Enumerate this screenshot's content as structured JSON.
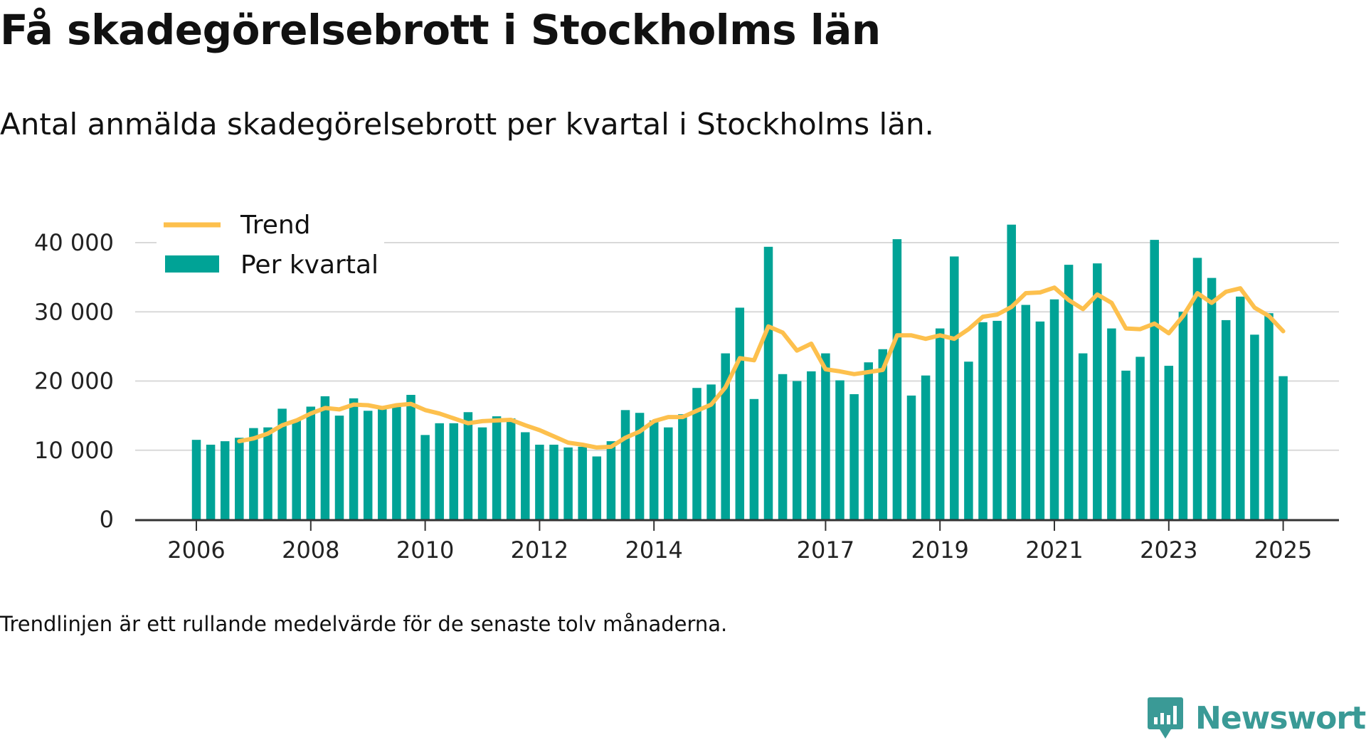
{
  "title": "Få skadegörelsebrott i Stockholms län",
  "subtitle": "Antal anmälda skadegörelsebrott per kvartal i Stockholms län.",
  "footnote": "Trendlinjen är ett rullande medelvärde för de senaste tolv månaderna.",
  "brand": {
    "name": "Newsworthy",
    "icon": "newsworthy-logo-icon"
  },
  "colors": {
    "bars": "#00a396",
    "trend": "#fdc04d",
    "grid": "#d9d9d9",
    "axis": "#333333",
    "brand": "#3a9a96"
  },
  "legend": {
    "trend_label": "Trend",
    "bars_label": "Per kvartal",
    "placement": "top-left"
  },
  "chart_data": {
    "type": "bar",
    "title": "Få skadegörelsebrott i Stockholms län",
    "ylim": [
      0,
      42000
    ],
    "yticks": [
      0,
      10000,
      20000,
      30000,
      40000
    ],
    "ytick_labels": [
      "0",
      "10 000",
      "20 000",
      "30 000",
      "40 000"
    ],
    "xticks": [
      "2006",
      "2008",
      "2010",
      "2012",
      "2014",
      "2017",
      "2019",
      "2021",
      "2023",
      "2025"
    ],
    "xtick_quarters": [
      {
        "label": "2006",
        "index": 0
      },
      {
        "label": "2008",
        "index": 8
      },
      {
        "label": "2010",
        "index": 16
      },
      {
        "label": "2012",
        "index": 24
      },
      {
        "label": "2014",
        "index": 32
      },
      {
        "label": "2017",
        "index": 44
      },
      {
        "label": "2019",
        "index": 52
      },
      {
        "label": "2021",
        "index": 60
      },
      {
        "label": "2023",
        "index": 68
      },
      {
        "label": "2025",
        "index": 76
      }
    ],
    "grid": true,
    "start_period": "2006 Q1",
    "series": [
      {
        "name": "Per kvartal",
        "type": "bar",
        "values": [
          11500,
          10800,
          11300,
          11800,
          13200,
          13300,
          16000,
          14300,
          16300,
          17800,
          15000,
          17500,
          15700,
          16000,
          16500,
          18000,
          12200,
          13900,
          13900,
          15500,
          13300,
          14900,
          14600,
          12600,
          10800,
          10800,
          10400,
          10500,
          9100,
          11300,
          15800,
          15400,
          14300,
          13300,
          15200,
          19000,
          19500,
          24000,
          30600,
          17400,
          39400,
          21000,
          20000,
          21400,
          24000,
          20100,
          18100,
          22700,
          24600,
          40500,
          17900,
          20800,
          27600,
          38000,
          22800,
          28500,
          28700,
          42600,
          31000,
          28600,
          31800,
          36800,
          24000,
          37000,
          27600,
          21500,
          23500,
          40400,
          22200,
          30000,
          37800,
          34900,
          28800,
          32200,
          26700,
          29800,
          20700
        ]
      },
      {
        "name": "Trend",
        "type": "line",
        "values": [
          null,
          null,
          null,
          11300,
          11700,
          12400,
          13600,
          14300,
          15300,
          16100,
          15900,
          16600,
          16500,
          16100,
          16500,
          16700,
          15800,
          15300,
          14600,
          13900,
          14200,
          14300,
          14400,
          13600,
          12900,
          12000,
          11100,
          10800,
          10400,
          10500,
          11800,
          12700,
          14200,
          14800,
          14800,
          15700,
          16600,
          19100,
          23300,
          23000,
          27900,
          27000,
          24400,
          25400,
          21700,
          21400,
          21000,
          21300,
          21600,
          26600,
          26600,
          26100,
          26600,
          26100,
          27500,
          29300,
          29600,
          30700,
          32700,
          32800,
          33500,
          31700,
          30400,
          32500,
          31300,
          27600,
          27500,
          28300,
          26900,
          29400,
          32700,
          31300,
          32900,
          33400,
          30600,
          29400,
          27200
        ]
      }
    ]
  }
}
